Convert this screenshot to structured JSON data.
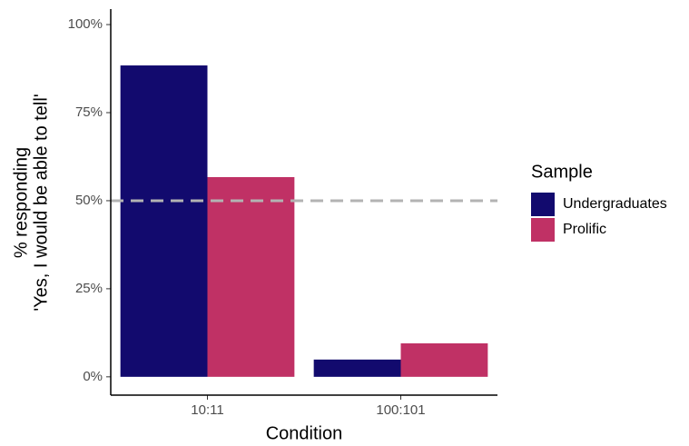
{
  "chart_data": {
    "type": "bar",
    "x_label": "Condition",
    "y_label": [
      "% responding",
      "'Yes, I would be able to tell'"
    ],
    "categories": [
      "10:11",
      "100:101"
    ],
    "series": [
      {
        "name": "Undergraduates",
        "color": "#120a6e",
        "values": [
          88.4,
          4.9
        ]
      },
      {
        "name": "Prolific",
        "color": "#c03165",
        "values": [
          56.7,
          9.5
        ]
      }
    ],
    "ylim": [
      -5.2,
      104.4
    ],
    "yticks": [
      {
        "value": 0,
        "label": "0%"
      },
      {
        "value": 25,
        "label": "25%"
      },
      {
        "value": 50,
        "label": "50%"
      },
      {
        "value": 75,
        "label": "75%"
      },
      {
        "value": 100,
        "label": "100%"
      }
    ],
    "hline": 50,
    "legend_title": "Sample",
    "legend_position": "right"
  }
}
